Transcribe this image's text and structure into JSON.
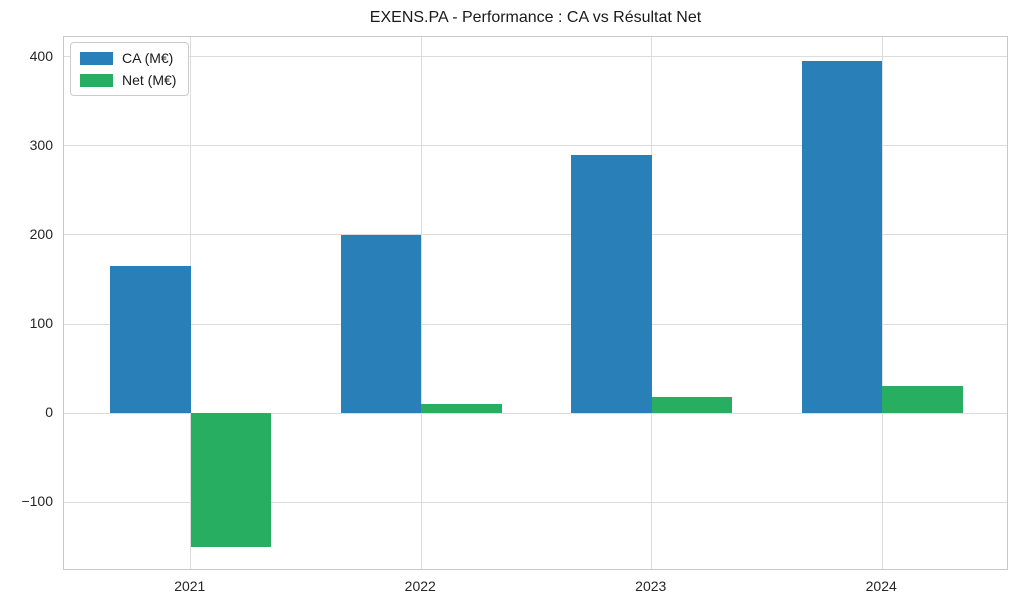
{
  "figure": {
    "title": "EXENS.PA - Performance : CA vs Résultat Net"
  },
  "chart_data": {
    "type": "bar",
    "title": "EXENS.PA - Performance : CA vs Résultat Net",
    "categories": [
      "2021",
      "2022",
      "2023",
      "2024"
    ],
    "series": [
      {
        "name": "CA (M€)",
        "color": "#2980b9",
        "values": [
          165,
          200,
          290,
          395
        ]
      },
      {
        "name": "Net (M€)",
        "color": "#27ae60",
        "values": [
          -150,
          10,
          18,
          30
        ]
      }
    ],
    "xlabel": "",
    "ylabel": "",
    "ylim": [
      -177.25,
      422.25
    ],
    "yticks": [
      -100,
      0,
      100,
      200,
      300,
      400
    ],
    "grid": true,
    "legend_position": "upper left",
    "colors": {
      "ca_bar": "#2980b9",
      "net_bar": "#27ae60",
      "grid": "#dcdcdc",
      "spine": "#c9c9c9",
      "text": "#262626"
    }
  }
}
